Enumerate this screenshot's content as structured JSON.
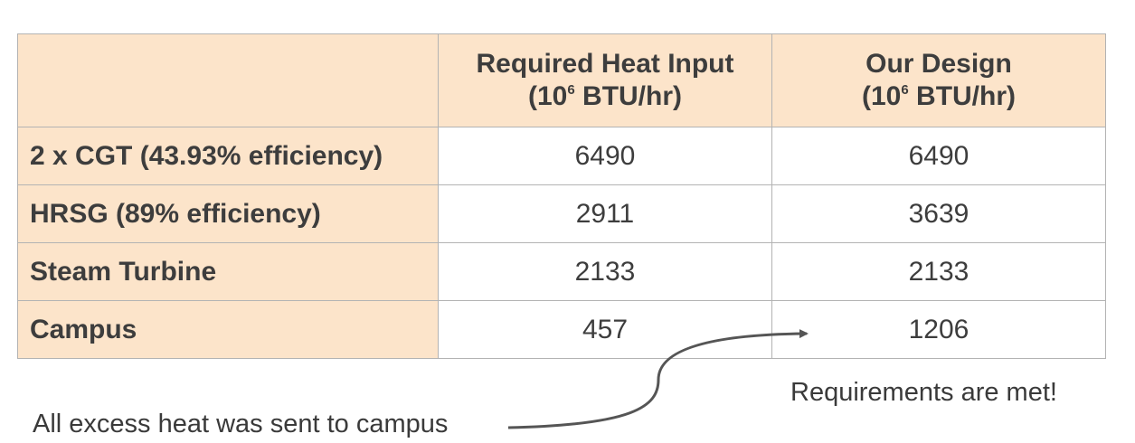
{
  "table": {
    "headers": [
      {
        "line1": "",
        "line2_prefix": "",
        "line2_exp": "",
        "line2_suffix": ""
      },
      {
        "line1": "Required Heat Input",
        "line2_prefix": "(10",
        "line2_exp": "6",
        "line2_suffix": " BTU/hr)"
      },
      {
        "line1": "Our Design",
        "line2_prefix": "(10",
        "line2_exp": "6",
        "line2_suffix": " BTU/hr)"
      }
    ],
    "rows": [
      {
        "label": "2 x CGT (43.93% efficiency)",
        "required": "6490",
        "design": "6490"
      },
      {
        "label": "HRSG (89% efficiency)",
        "required": "2911",
        "design": "3639"
      },
      {
        "label": "Steam Turbine",
        "required": "2133",
        "design": "2133"
      },
      {
        "label": "Campus",
        "required": "457",
        "design": "1206"
      }
    ]
  },
  "notes": {
    "excess_heat": "All excess heat was sent to campus",
    "requirements": "Requirements are met!"
  },
  "colors": {
    "header_fill": "#fce4ca",
    "border": "#b3b3b3",
    "text": "#3a3a3a",
    "arrow": "#555555"
  }
}
